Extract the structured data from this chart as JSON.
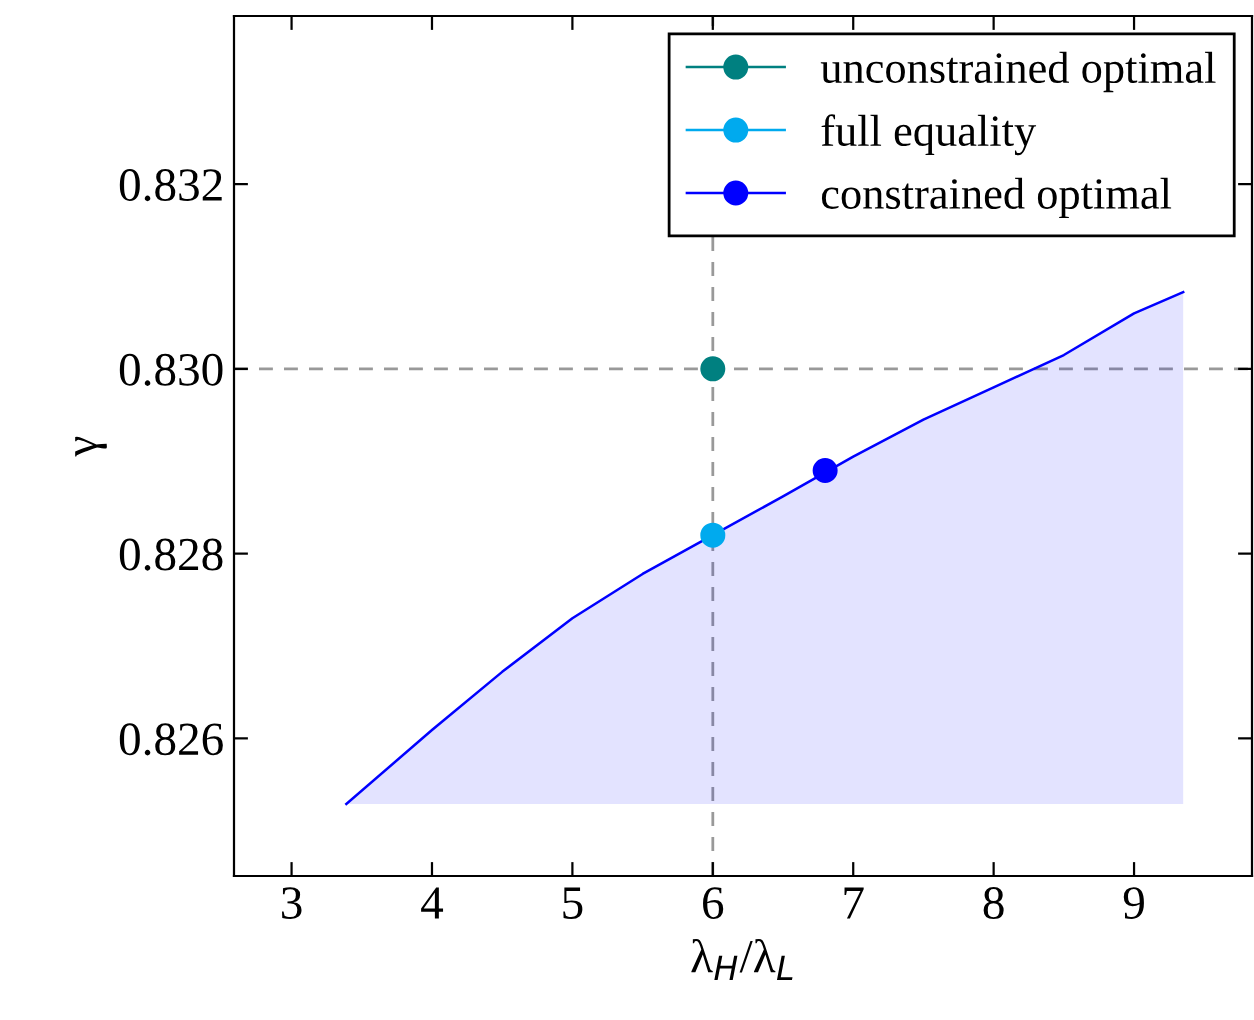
{
  "chart_data": {
    "type": "area",
    "xlabel": "λ$_{H}$/λ$_{L}$",
    "ylabel": "γ",
    "xlim": [
      2.59,
      9.84
    ],
    "ylim": [
      0.82451,
      0.83382
    ],
    "xticks": [
      3,
      4,
      5,
      6,
      7,
      8,
      9
    ],
    "yticks": [
      {
        "value": 0.826,
        "label": "0.826"
      },
      {
        "value": 0.828,
        "label": "0.828"
      },
      {
        "value": 0.83,
        "label": "0.830"
      },
      {
        "value": 0.832,
        "label": "0.832"
      }
    ],
    "grid": false,
    "legend": "top right",
    "ref_lines": [
      {
        "axis": "x",
        "value": 6,
        "color": "#999999",
        "line_style": "dashed"
      },
      {
        "axis": "y",
        "value": 0.83,
        "color": "#999999",
        "line_style": "dashed"
      }
    ],
    "series": [
      {
        "color": "#0000ff",
        "x": [
          3.39,
          4,
          4.5,
          5,
          5.5,
          6,
          6.5,
          7,
          7.5,
          8,
          8.5,
          9,
          9.35
        ],
        "values": [
          0.82529,
          0.82609,
          0.82672,
          0.8273,
          0.82778,
          0.8282,
          0.82862,
          0.82905,
          0.82945,
          0.8298,
          0.83015,
          0.8306,
          0.83083
        ]
      },
      {
        "type": "scatter",
        "name": "unconstrained optimal",
        "color": "#008080",
        "x": [
          6
        ],
        "values": [
          0.83
        ],
        "marker": "circle"
      },
      {
        "type": "scatter",
        "name": "full equality",
        "color": "#00aaee",
        "x": [
          6
        ],
        "values": [
          0.8282
        ],
        "marker": "circle"
      },
      {
        "type": "scatter",
        "name": "constrained optimal",
        "color": "#0000ff",
        "x": [
          6.8
        ],
        "values": [
          0.8289
        ],
        "marker": "circle"
      }
    ]
  }
}
